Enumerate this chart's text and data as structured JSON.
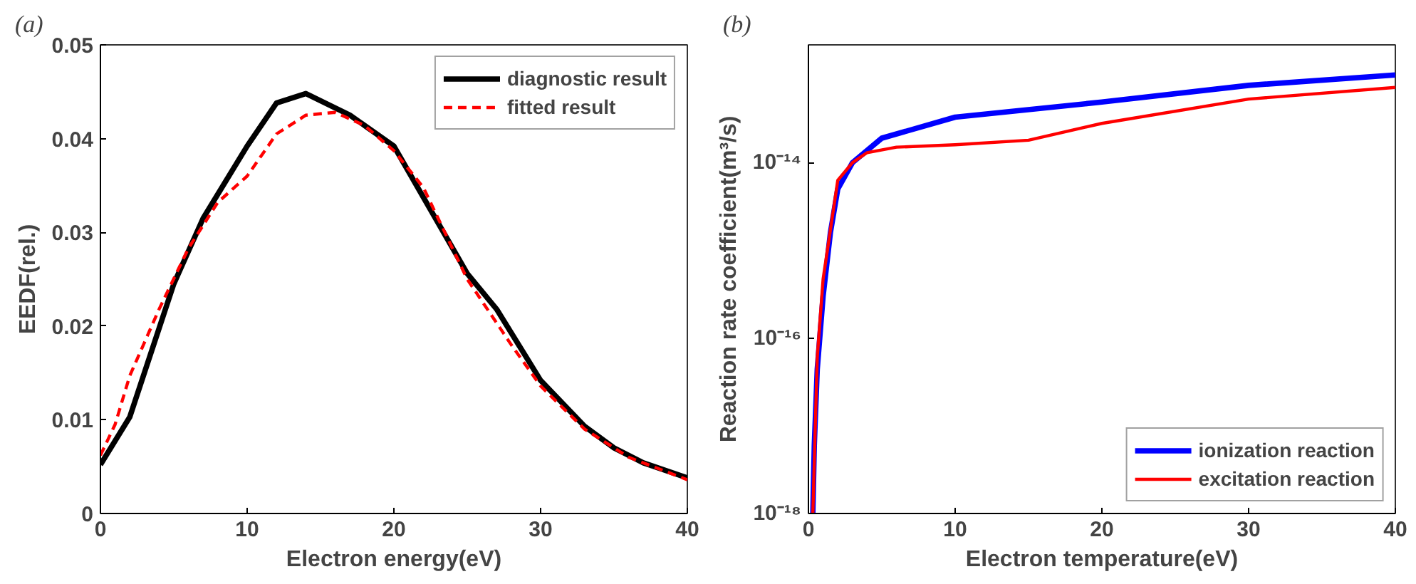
{
  "chart_data": [
    {
      "type": "line",
      "title": "(a)",
      "xlabel": "Electron energy(eV)",
      "ylabel": "EEDF(rel.)",
      "xlim": [
        0,
        40
      ],
      "ylim": [
        0,
        0.05
      ],
      "xticks": [
        0,
        10,
        20,
        30,
        40
      ],
      "yticks": [
        0,
        0.01,
        0.02,
        0.03,
        0.04,
        0.05
      ],
      "grid": false,
      "legend": "top right",
      "series": [
        {
          "name": "diagnostic result",
          "color": "#000000",
          "line_style": "solid",
          "x": [
            0,
            2,
            5,
            7,
            10,
            12,
            14,
            17,
            20,
            25,
            27,
            30,
            33,
            35,
            37,
            40
          ],
          "values": [
            0.0052,
            0.0103,
            0.0245,
            0.0315,
            0.0392,
            0.0438,
            0.0448,
            0.0425,
            0.0392,
            0.0256,
            0.0218,
            0.0142,
            0.0093,
            0.007,
            0.0054,
            0.0038
          ]
        },
        {
          "name": "fitted result",
          "color": "#ff0000",
          "line_style": "dashed",
          "x": [
            0,
            1,
            2,
            4,
            6,
            8,
            10,
            12,
            14,
            16,
            18,
            20,
            22,
            25,
            28,
            30,
            33,
            36,
            40
          ],
          "values": [
            0.0062,
            0.0095,
            0.0147,
            0.0218,
            0.0283,
            0.0332,
            0.036,
            0.0405,
            0.0425,
            0.0428,
            0.0414,
            0.0387,
            0.0348,
            0.025,
            0.018,
            0.0136,
            0.009,
            0.006,
            0.0036
          ]
        }
      ]
    },
    {
      "type": "line",
      "title": "(b)",
      "xlabel": "Electron temperature(eV)",
      "ylabel": "Reaction rate coefficient(m³/s)",
      "log": "y",
      "xlim": [
        0,
        40
      ],
      "ylim": [
        1e-18,
        2.2e-13
      ],
      "xticks": [
        0,
        10,
        20,
        30,
        40
      ],
      "yticks": [
        {
          "value": 1e-18,
          "label": "10⁻¹⁸"
        },
        {
          "value": 1e-16,
          "label": "10⁻¹⁶"
        },
        {
          "value": 1e-14,
          "label": "10⁻¹⁴"
        }
      ],
      "grid": false,
      "legend": "bottom right",
      "series": [
        {
          "name": "ionization reaction",
          "color": "#0000ff",
          "line_style": "solid",
          "x": [
            0.3,
            0.4,
            0.6,
            1,
            1.5,
            2,
            3,
            5,
            10,
            20,
            30,
            40
          ],
          "values": [
            1e-18,
            6e-18,
            4.4e-17,
            3e-16,
            1.6e-15,
            5e-15,
            1e-14,
            1.9e-14,
            3.3e-14,
            4.9e-14,
            7.6e-14,
            1e-13
          ]
        },
        {
          "name": "excitation reaction",
          "color": "#ff0000",
          "line_style": "solid",
          "x": [
            0.3,
            0.6,
            1,
            2,
            3,
            4,
            6,
            10,
            15,
            20,
            30,
            40
          ],
          "values": [
            1e-18,
            6e-17,
            4.7e-16,
            6.3e-15,
            1e-14,
            1.3e-14,
            1.5e-14,
            1.6e-14,
            1.8e-14,
            2.8e-14,
            5.3e-14,
            7.2e-14
          ]
        }
      ]
    }
  ]
}
